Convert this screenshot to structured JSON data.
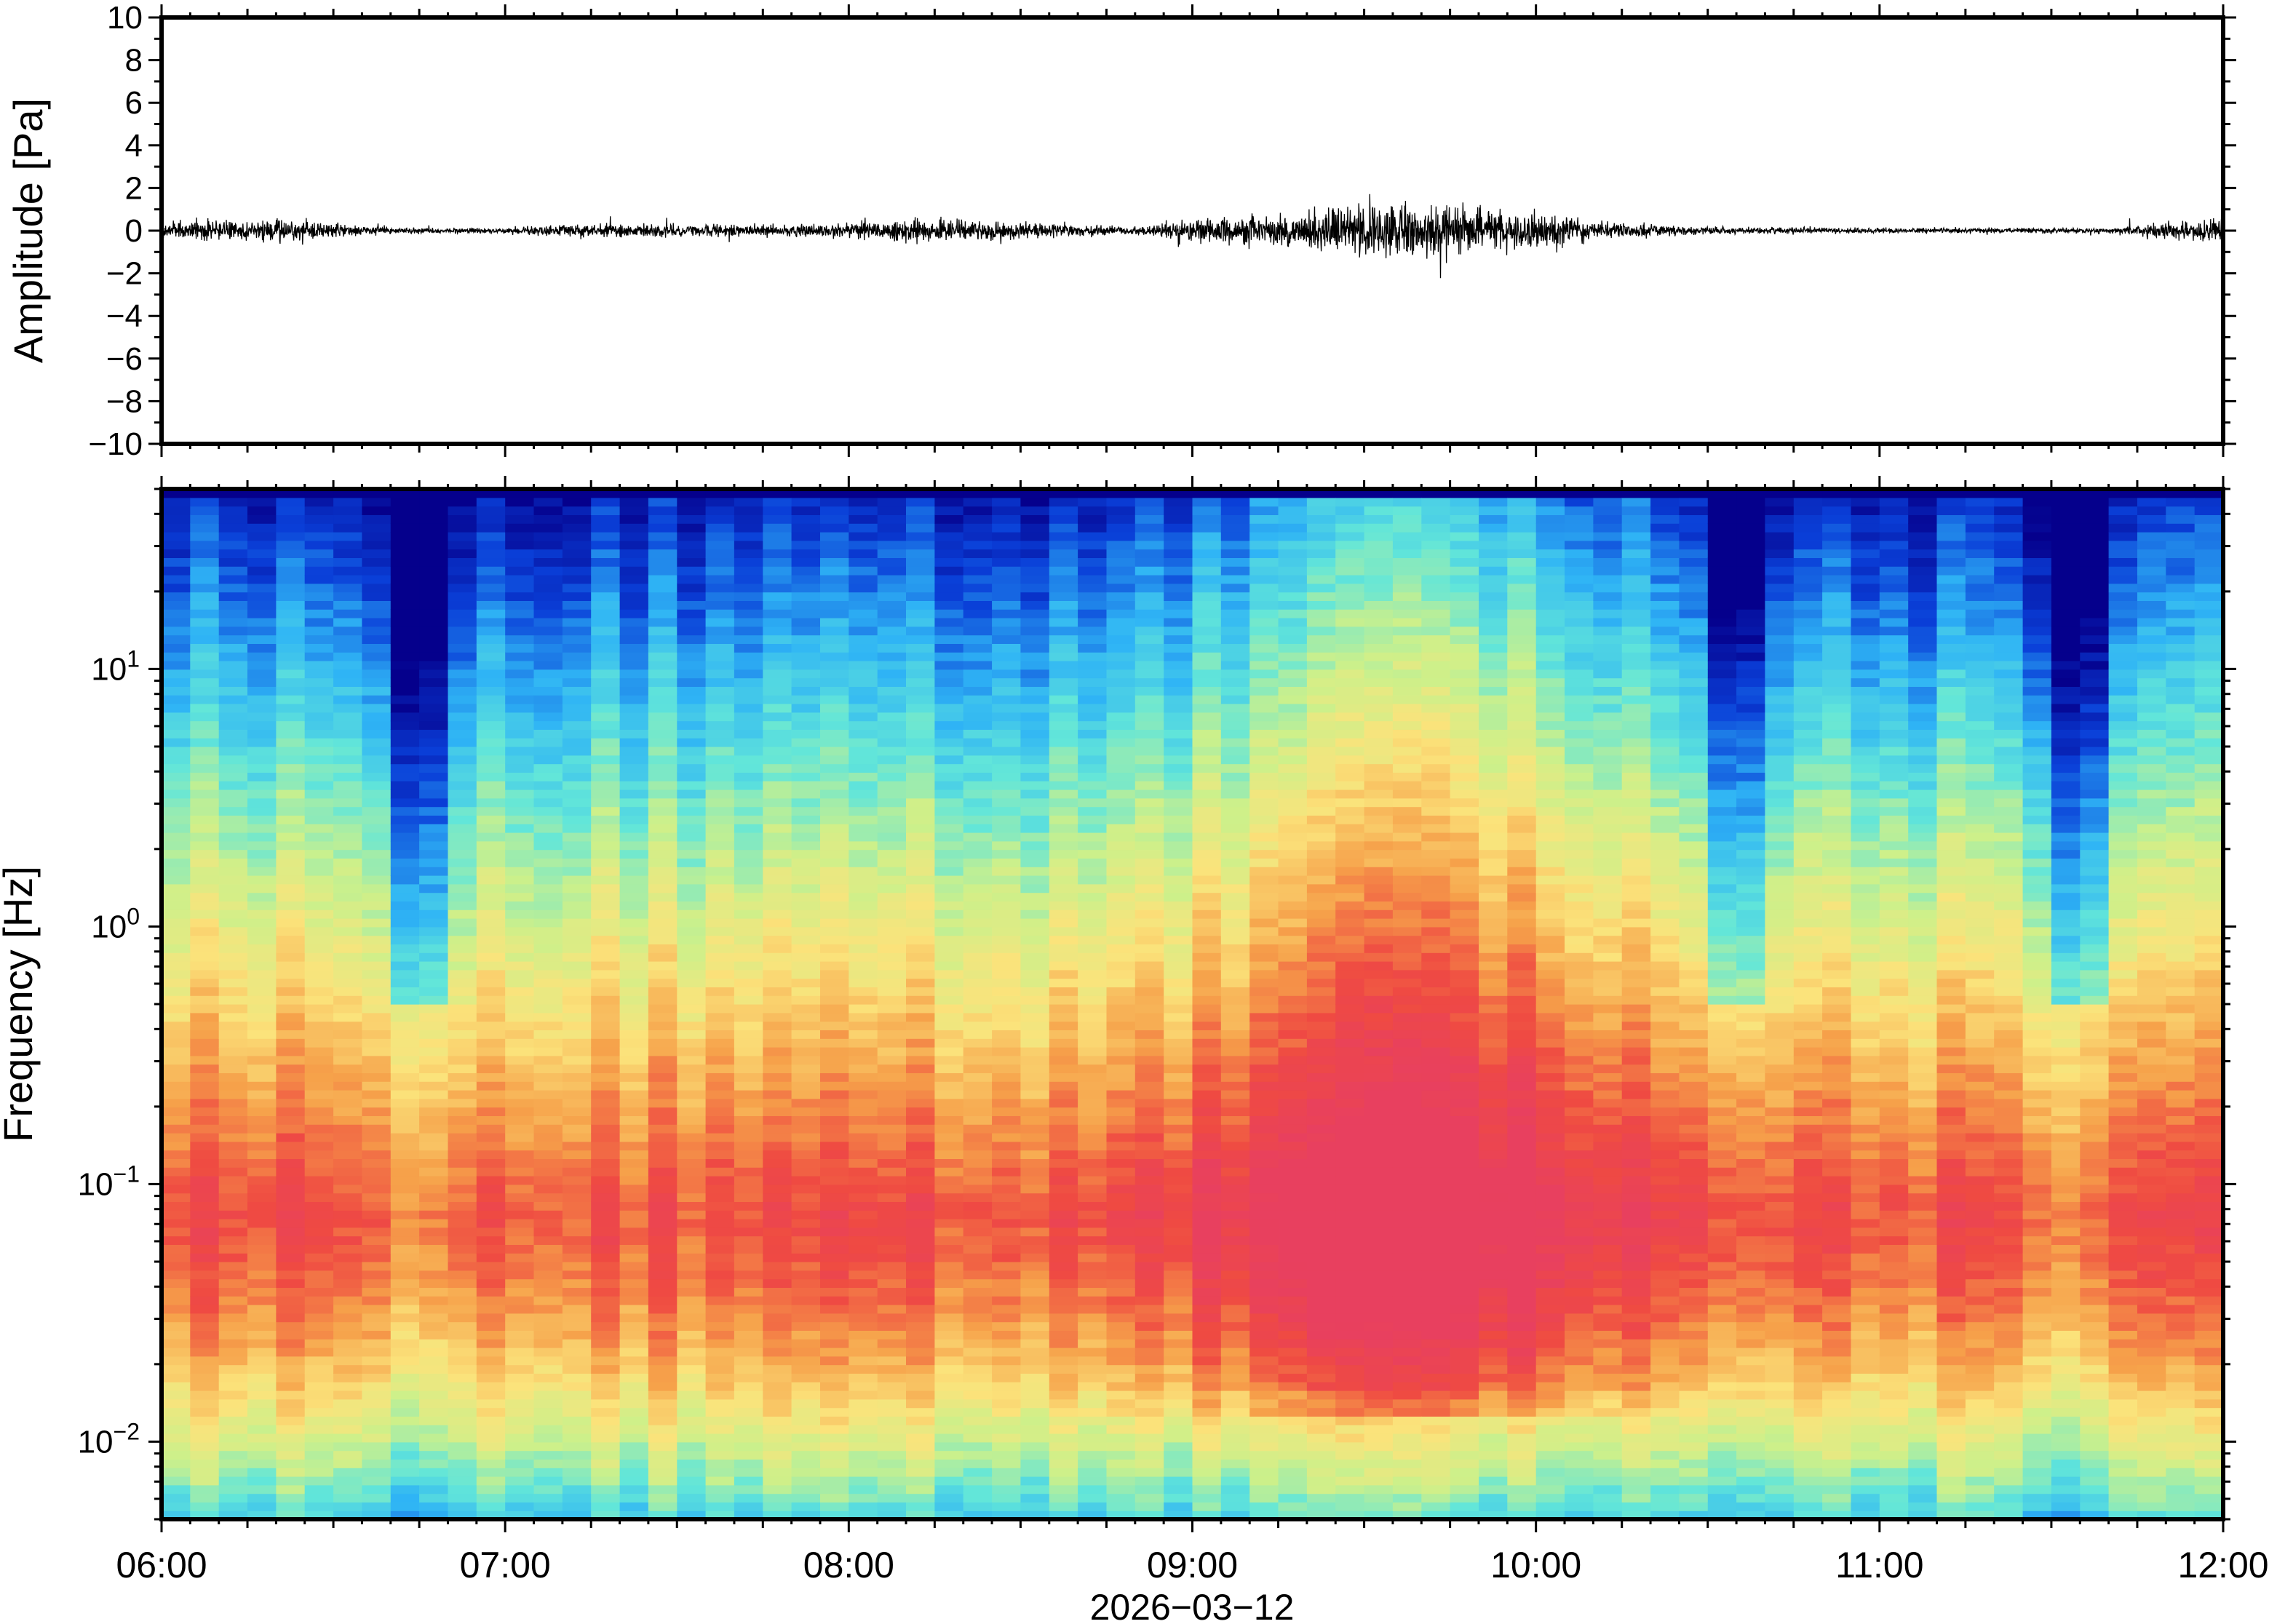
{
  "chart_data": [
    {
      "type": "line",
      "panel": "waveform",
      "ylabel": "Amplitude [Pa]",
      "ylim": [
        -10,
        10
      ],
      "yticks": [
        10,
        8,
        6,
        4,
        2,
        0,
        -2,
        -4,
        -6,
        -8,
        -10
      ],
      "ytick_labels": [
        "10",
        "8",
        "6",
        "4",
        "2",
        "0",
        "−2",
        "−4",
        "−6",
        "−8",
        "−10"
      ],
      "xlim": [
        "06:00",
        "12:00"
      ],
      "envelope": {
        "description_unit": "Pa",
        "times": [
          "06:00",
          "06:20",
          "06:30",
          "06:40",
          "06:50",
          "07:00",
          "07:10",
          "07:30",
          "07:50",
          "08:00",
          "08:10",
          "08:20",
          "08:40",
          "08:50",
          "09:00",
          "09:10",
          "09:20",
          "09:30",
          "09:40",
          "09:50",
          "10:00",
          "10:10",
          "10:20",
          "10:30",
          "10:50",
          "11:10",
          "11:30",
          "11:40",
          "11:50",
          "12:00"
        ],
        "half_range": [
          0.7,
          0.9,
          0.5,
          0.25,
          0.2,
          0.2,
          0.5,
          0.45,
          0.45,
          0.65,
          0.85,
          0.8,
          0.45,
          0.3,
          0.9,
          1.1,
          1.4,
          1.9,
          1.9,
          1.7,
          1.3,
          0.8,
          0.5,
          0.25,
          0.2,
          0.2,
          0.2,
          0.2,
          0.65,
          0.9
        ]
      }
    },
    {
      "type": "heatmap",
      "panel": "spectrogram",
      "ylabel": "Frequency [Hz]",
      "yscale": "log",
      "ylim": [
        0.005,
        50
      ],
      "yticks": [
        10,
        1,
        0.1,
        0.01
      ],
      "ytick_labels": [
        {
          "base": "10",
          "exp": "1"
        },
        {
          "base": "10",
          "exp": "0"
        },
        {
          "base": "10",
          "exp": "−1"
        },
        {
          "base": "10",
          "exp": "−2"
        }
      ],
      "xlabel": "2026−03−12",
      "xticks": [
        "06:00",
        "07:00",
        "08:00",
        "09:00",
        "10:00",
        "11:00",
        "12:00"
      ],
      "colormap": "rainbow (blue → cyan → yellow → red)",
      "peak_energy": {
        "time": "09:40",
        "frequency_hz": 0.08
      },
      "low_energy_columns": [
        "06:45",
        "10:35",
        "11:35"
      ]
    }
  ],
  "colors": {
    "frame": "#000000",
    "trace": "#000000",
    "background": "#ffffff",
    "colormap_stops": [
      "#05008c",
      "#0a3fd8",
      "#2fb4f5",
      "#62e6d9",
      "#cdf08a",
      "#fbe37b",
      "#f6a14a",
      "#ef4a42",
      "#e8405f"
    ]
  }
}
